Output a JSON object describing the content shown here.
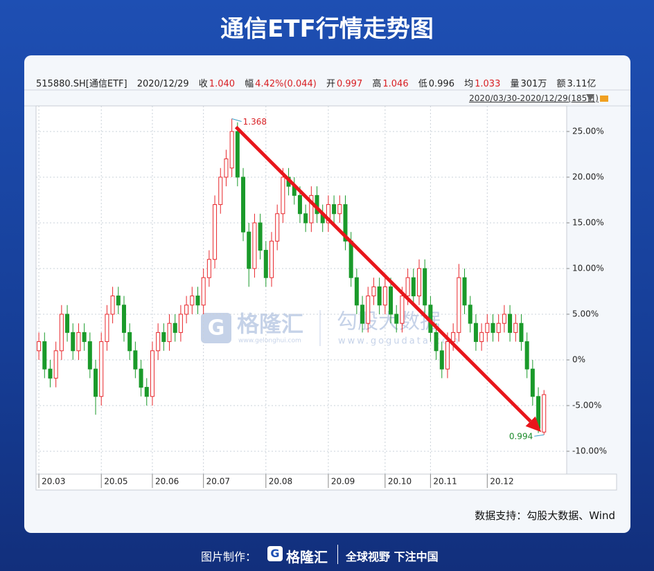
{
  "header": {
    "title": "通信ETF行情走势图"
  },
  "info_bar": {
    "code": "515880.SH[通信ETF]",
    "date": "2020/12/29",
    "close_label": "收",
    "close": "1.040",
    "change_label": "幅",
    "change": "4.42%(0.044)",
    "open_label": "开",
    "open": "0.997",
    "high_label": "高",
    "high": "1.046",
    "low_label": "低",
    "low": "0.996",
    "avg_label": "均",
    "avg": "1.033",
    "volume_label": "量",
    "volume": "301万",
    "amount_label": "额",
    "amount": "3.11亿",
    "range": "2020/03/30-2020/12/29(185日)"
  },
  "chart_data": {
    "type": "candlestick",
    "open": [
      1,
      2,
      -1,
      -2,
      1,
      5,
      3,
      1,
      3,
      2,
      -1,
      -4,
      2,
      5,
      7,
      6,
      3,
      1,
      -1,
      -3,
      -4,
      1,
      3,
      2,
      4,
      3,
      5,
      6,
      7,
      6,
      9,
      11,
      17,
      20,
      21,
      25,
      20,
      14,
      10,
      15,
      12,
      9,
      13,
      16,
      20,
      19,
      18,
      16,
      15,
      18,
      16,
      15,
      17,
      16,
      17,
      13,
      9,
      6,
      4,
      7,
      8,
      6,
      8,
      5,
      4,
      7,
      9,
      7,
      10,
      6,
      3,
      1,
      -1,
      2,
      3,
      9,
      6,
      4,
      2,
      3,
      4,
      3,
      4,
      5,
      3,
      4,
      2,
      -1,
      -4,
      -7.9
    ],
    "close": [
      2,
      -1,
      -2,
      1,
      5,
      3,
      1,
      3,
      2,
      -1,
      -4,
      2,
      5,
      7,
      6,
      3,
      1,
      -1,
      -3,
      -4,
      1,
      3,
      2,
      4,
      3,
      5,
      6,
      7,
      6,
      9,
      11,
      17,
      20,
      22,
      25,
      20,
      14,
      10,
      15,
      12,
      9,
      13,
      16,
      20,
      19,
      18,
      16,
      15,
      18,
      16,
      15,
      17,
      16,
      17,
      13,
      9,
      6,
      4,
      7,
      8,
      6,
      8,
      5,
      4,
      7,
      9,
      7,
      10,
      6,
      3,
      1,
      -1,
      2,
      3,
      9,
      6,
      4,
      2,
      3,
      4,
      3,
      4,
      5,
      3,
      4,
      2,
      -1,
      -4,
      -7.5,
      -3.8
    ],
    "high": [
      3,
      3,
      0,
      2,
      6,
      6,
      4,
      4,
      4,
      3,
      0,
      3,
      6,
      8,
      8,
      7,
      4,
      2,
      0,
      -2,
      2,
      4,
      4,
      5,
      5,
      6,
      7,
      8,
      8,
      10,
      12,
      18,
      21,
      23,
      26.4,
      26,
      21,
      15,
      16,
      16,
      13,
      14,
      17,
      21,
      21,
      20,
      19,
      17,
      19,
      19,
      17,
      18,
      18,
      18,
      18,
      14,
      10,
      7,
      8,
      9,
      9,
      9,
      9,
      6,
      8,
      10,
      10,
      11,
      11,
      7,
      4,
      2,
      3,
      4,
      10.5,
      10,
      7,
      5,
      4,
      5,
      5,
      5,
      6,
      6,
      5,
      5,
      3,
      0,
      -3,
      -3.3
    ],
    "low": [
      0,
      -2,
      -3,
      -3,
      0,
      2,
      0,
      0,
      1,
      -2,
      -6,
      -5,
      1,
      4,
      5,
      2,
      0,
      -2,
      -4,
      -5,
      -5,
      0,
      1,
      1,
      2,
      2,
      4,
      5,
      5,
      5,
      8,
      10,
      16,
      19,
      20,
      19,
      13,
      8,
      9,
      11,
      8,
      8,
      12,
      15,
      18,
      17,
      15,
      14,
      14,
      15,
      14,
      14,
      15,
      15,
      12,
      8,
      5,
      3,
      3,
      6,
      5,
      5,
      4,
      3,
      3,
      6,
      6,
      6,
      5,
      2,
      0,
      -2,
      -2,
      1,
      2,
      5,
      3,
      1,
      1,
      2,
      2,
      2,
      3,
      2,
      2,
      1,
      -2,
      -5,
      -8,
      -8.2
    ],
    "up_color": "#e8262b",
    "down_color": "#1a9a2a",
    "ylim": [
      -12.5,
      27.8
    ],
    "yticks": [
      {
        "value": -10,
        "label": "-10.00%"
      },
      {
        "value": -5,
        "label": "-5.00%"
      },
      {
        "value": 0,
        "label": "0%"
      },
      {
        "value": 5,
        "label": "5.00%"
      },
      {
        "value": 10,
        "label": "10.00%"
      },
      {
        "value": 15,
        "label": "15.00%"
      },
      {
        "value": 20,
        "label": "20.00%"
      },
      {
        "value": 25,
        "label": "25.00%"
      }
    ],
    "xlim": [
      -0.5,
      93
    ],
    "xticks": [
      {
        "value": 0,
        "label": "20.03"
      },
      {
        "value": 11,
        "label": "20.05"
      },
      {
        "value": 20,
        "label": "20.06"
      },
      {
        "value": 29,
        "label": "20.07"
      },
      {
        "value": 40,
        "label": "20.08"
      },
      {
        "value": 51,
        "label": "20.09"
      },
      {
        "value": 61,
        "label": "20.10"
      },
      {
        "value": 69,
        "label": "20.11"
      },
      {
        "value": 79,
        "label": "20.12"
      }
    ],
    "grid": true,
    "annotations": {
      "max": "1.368",
      "min": "0.994"
    }
  },
  "watermark": {
    "brand": "格隆汇",
    "brand_url": "www.gelonghui.com",
    "data_brand": "勾股大数据",
    "data_url": "www.gogudata.com"
  },
  "source": "数据支持：勾股大数据、Wind",
  "footer": {
    "made_by": "图片制作：",
    "brand": "格隆汇",
    "slogan": "全球视野 下注中国"
  }
}
